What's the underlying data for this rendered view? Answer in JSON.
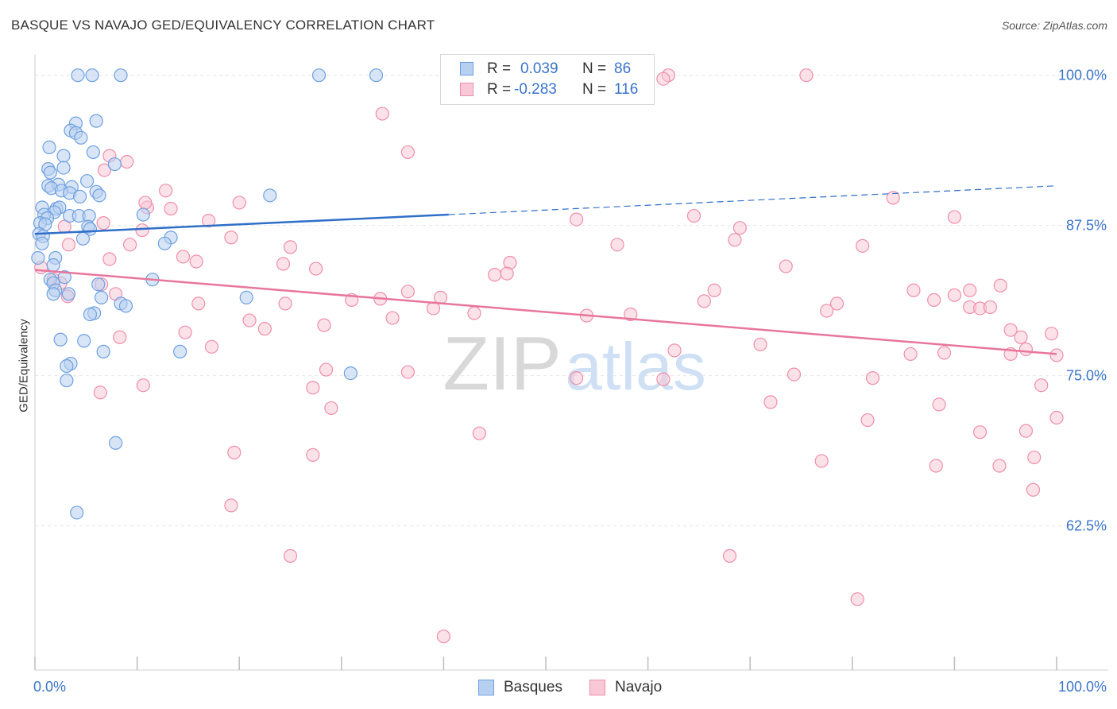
{
  "title": "BASQUE VS NAVAJO GED/EQUIVALENCY CORRELATION CHART",
  "source": "Source: ZipAtlas.com",
  "watermark": {
    "zip": "ZIP",
    "atlas": "atlas"
  },
  "colors": {
    "basques": "#6ea0e0",
    "basques_fill": "#b8d0f0",
    "basques_line": "#2f6fc8",
    "navajo": "#ee8fab",
    "navajo_fill": "#f8c8d6",
    "navajo_line": "#e8769c",
    "axis_label": "#3a74c8",
    "grid": "#e6e6e6"
  },
  "stats_legend": {
    "rows": [
      {
        "series": "Basques",
        "r_label": "R =",
        "r_value": "0.039",
        "n_label": "N =",
        "n_value": "86"
      },
      {
        "series": "Navajo",
        "r_label": "R =",
        "r_value": "-0.283",
        "n_label": "N =",
        "n_value": "116"
      }
    ]
  },
  "chart_data": {
    "type": "scatter",
    "title": "BASQUE VS NAVAJO GED/EQUIVALENCY CORRELATION CHART",
    "xlabel": "",
    "ylabel": "GED/Equivalency",
    "xlim": [
      0,
      100
    ],
    "ylim": [
      50.5,
      101.5
    ],
    "x_tick_labels": [
      "0.0%",
      "100.0%"
    ],
    "y_ticks": [
      62.5,
      75.0,
      87.5,
      100.0
    ],
    "y_tick_labels": [
      "62.5%",
      "75.0%",
      "87.5%",
      "100.0%"
    ],
    "grid": true,
    "legend_position": "bottom-center",
    "series": [
      {
        "name": "Basques",
        "trend": {
          "x": [
            0,
            40.5
          ],
          "y": [
            86.8,
            88.4
          ],
          "dashed_extension": {
            "x": [
              40.5,
              100
            ],
            "y": [
              88.4,
              90.8
            ]
          }
        },
        "points": [
          [
            4.2,
            100.0
          ],
          [
            5.6,
            100.0
          ],
          [
            8.4,
            100.0
          ],
          [
            27.8,
            100.0
          ],
          [
            33.4,
            100.0
          ],
          [
            4.0,
            96.0
          ],
          [
            6.0,
            96.2
          ],
          [
            3.5,
            95.4
          ],
          [
            4.0,
            95.2
          ],
          [
            4.5,
            94.8
          ],
          [
            1.4,
            94.0
          ],
          [
            5.7,
            93.6
          ],
          [
            2.8,
            93.3
          ],
          [
            7.8,
            92.6
          ],
          [
            1.3,
            92.2
          ],
          [
            1.5,
            91.9
          ],
          [
            2.8,
            92.3
          ],
          [
            5.1,
            91.2
          ],
          [
            1.3,
            90.8
          ],
          [
            2.3,
            90.9
          ],
          [
            3.6,
            90.7
          ],
          [
            1.6,
            90.6
          ],
          [
            2.6,
            90.4
          ],
          [
            3.4,
            90.2
          ],
          [
            6.0,
            90.3
          ],
          [
            6.3,
            90.0
          ],
          [
            4.4,
            89.9
          ],
          [
            23.0,
            90.0
          ],
          [
            0.7,
            89.0
          ],
          [
            2.1,
            88.9
          ],
          [
            2.4,
            89.0
          ],
          [
            1.9,
            88.6
          ],
          [
            0.9,
            88.4
          ],
          [
            1.2,
            88.1
          ],
          [
            3.4,
            88.3
          ],
          [
            4.3,
            88.3
          ],
          [
            5.3,
            88.3
          ],
          [
            0.5,
            87.7
          ],
          [
            1.0,
            87.6
          ],
          [
            5.2,
            87.4
          ],
          [
            5.4,
            87.2
          ],
          [
            0.4,
            86.8
          ],
          [
            0.8,
            86.6
          ],
          [
            4.7,
            86.4
          ],
          [
            13.3,
            86.5
          ],
          [
            0.7,
            86.0
          ],
          [
            12.7,
            86.0
          ],
          [
            2.0,
            84.8
          ],
          [
            1.8,
            84.2
          ],
          [
            0.3,
            84.8
          ],
          [
            1.5,
            83.0
          ],
          [
            2.9,
            83.2
          ],
          [
            11.5,
            83.0
          ],
          [
            1.8,
            82.7
          ],
          [
            6.2,
            82.6
          ],
          [
            2.0,
            82.1
          ],
          [
            1.8,
            81.8
          ],
          [
            3.3,
            81.8
          ],
          [
            6.5,
            81.5
          ],
          [
            20.7,
            81.5
          ],
          [
            8.4,
            81.0
          ],
          [
            8.9,
            80.8
          ],
          [
            5.8,
            80.2
          ],
          [
            5.4,
            80.1
          ],
          [
            2.5,
            78.0
          ],
          [
            4.8,
            77.9
          ],
          [
            6.7,
            77.0
          ],
          [
            14.2,
            77.0
          ],
          [
            3.5,
            76.0
          ],
          [
            3.1,
            75.8
          ],
          [
            30.9,
            75.2
          ],
          [
            3.1,
            74.6
          ],
          [
            7.9,
            69.4
          ],
          [
            4.1,
            63.6
          ],
          [
            10.6,
            88.4
          ]
        ]
      },
      {
        "name": "Navajo",
        "trend": {
          "x": [
            0,
            100
          ],
          "y": [
            83.8,
            76.8
          ]
        },
        "points": [
          [
            62.0,
            100.0
          ],
          [
            75.5,
            100.0
          ],
          [
            61.5,
            99.7
          ],
          [
            34.0,
            96.8
          ],
          [
            36.5,
            93.6
          ],
          [
            7.3,
            93.3
          ],
          [
            9.0,
            92.8
          ],
          [
            6.8,
            92.1
          ],
          [
            12.8,
            90.4
          ],
          [
            11.0,
            89.0
          ],
          [
            10.8,
            89.4
          ],
          [
            20.0,
            89.4
          ],
          [
            84.0,
            89.8
          ],
          [
            13.3,
            88.9
          ],
          [
            6.7,
            87.7
          ],
          [
            17.0,
            87.9
          ],
          [
            53.0,
            88.0
          ],
          [
            64.5,
            88.3
          ],
          [
            90.0,
            88.2
          ],
          [
            2.9,
            87.4
          ],
          [
            10.5,
            87.1
          ],
          [
            69.0,
            87.3
          ],
          [
            19.2,
            86.5
          ],
          [
            3.3,
            85.9
          ],
          [
            9.3,
            85.9
          ],
          [
            57.0,
            85.9
          ],
          [
            81.0,
            85.8
          ],
          [
            68.5,
            86.3
          ],
          [
            25.0,
            85.7
          ],
          [
            14.5,
            84.9
          ],
          [
            7.3,
            84.7
          ],
          [
            15.8,
            84.5
          ],
          [
            24.3,
            84.3
          ],
          [
            46.5,
            84.4
          ],
          [
            0.6,
            84.0
          ],
          [
            73.5,
            84.1
          ],
          [
            27.5,
            83.9
          ],
          [
            45.0,
            83.4
          ],
          [
            46.2,
            83.5
          ],
          [
            1.8,
            83.0
          ],
          [
            2.5,
            82.7
          ],
          [
            6.5,
            82.6
          ],
          [
            66.5,
            82.1
          ],
          [
            91.5,
            82.1
          ],
          [
            36.5,
            82.0
          ],
          [
            7.9,
            81.8
          ],
          [
            3.2,
            81.6
          ],
          [
            33.8,
            81.4
          ],
          [
            39.7,
            81.5
          ],
          [
            86.0,
            82.1
          ],
          [
            90.0,
            81.7
          ],
          [
            94.5,
            82.5
          ],
          [
            88.0,
            81.3
          ],
          [
            16.0,
            81.0
          ],
          [
            24.5,
            81.0
          ],
          [
            31.0,
            81.3
          ],
          [
            65.5,
            81.2
          ],
          [
            39.0,
            80.6
          ],
          [
            78.5,
            81.0
          ],
          [
            91.5,
            80.7
          ],
          [
            92.5,
            80.6
          ],
          [
            93.5,
            80.7
          ],
          [
            58.3,
            80.1
          ],
          [
            77.5,
            80.4
          ],
          [
            43.0,
            80.2
          ],
          [
            54.0,
            80.0
          ],
          [
            35.0,
            79.8
          ],
          [
            21.0,
            79.6
          ],
          [
            28.3,
            79.2
          ],
          [
            14.7,
            78.6
          ],
          [
            99.5,
            78.5
          ],
          [
            22.5,
            78.9
          ],
          [
            95.5,
            78.8
          ],
          [
            8.3,
            78.2
          ],
          [
            96.5,
            78.2
          ],
          [
            17.3,
            77.4
          ],
          [
            97.0,
            77.2
          ],
          [
            62.6,
            77.1
          ],
          [
            71.0,
            77.6
          ],
          [
            85.7,
            76.8
          ],
          [
            89.0,
            76.9
          ],
          [
            100.0,
            76.7
          ],
          [
            95.5,
            76.8
          ],
          [
            28.5,
            75.5
          ],
          [
            36.5,
            75.3
          ],
          [
            53.0,
            74.8
          ],
          [
            61.5,
            74.7
          ],
          [
            74.3,
            75.1
          ],
          [
            82.0,
            74.8
          ],
          [
            98.5,
            74.2
          ],
          [
            10.6,
            74.2
          ],
          [
            27.2,
            74.0
          ],
          [
            6.4,
            73.6
          ],
          [
            72.0,
            72.8
          ],
          [
            29.0,
            72.3
          ],
          [
            88.5,
            72.6
          ],
          [
            81.5,
            71.3
          ],
          [
            100.0,
            71.5
          ],
          [
            43.5,
            70.2
          ],
          [
            92.5,
            70.3
          ],
          [
            97.0,
            70.4
          ],
          [
            97.8,
            68.2
          ],
          [
            19.5,
            68.6
          ],
          [
            27.2,
            68.4
          ],
          [
            77.0,
            67.9
          ],
          [
            88.2,
            67.5
          ],
          [
            94.4,
            67.5
          ],
          [
            97.7,
            65.5
          ],
          [
            19.2,
            64.2
          ],
          [
            25.0,
            60.0
          ],
          [
            68.0,
            60.0
          ],
          [
            80.5,
            56.4
          ],
          [
            40.0,
            53.3
          ]
        ]
      }
    ]
  }
}
